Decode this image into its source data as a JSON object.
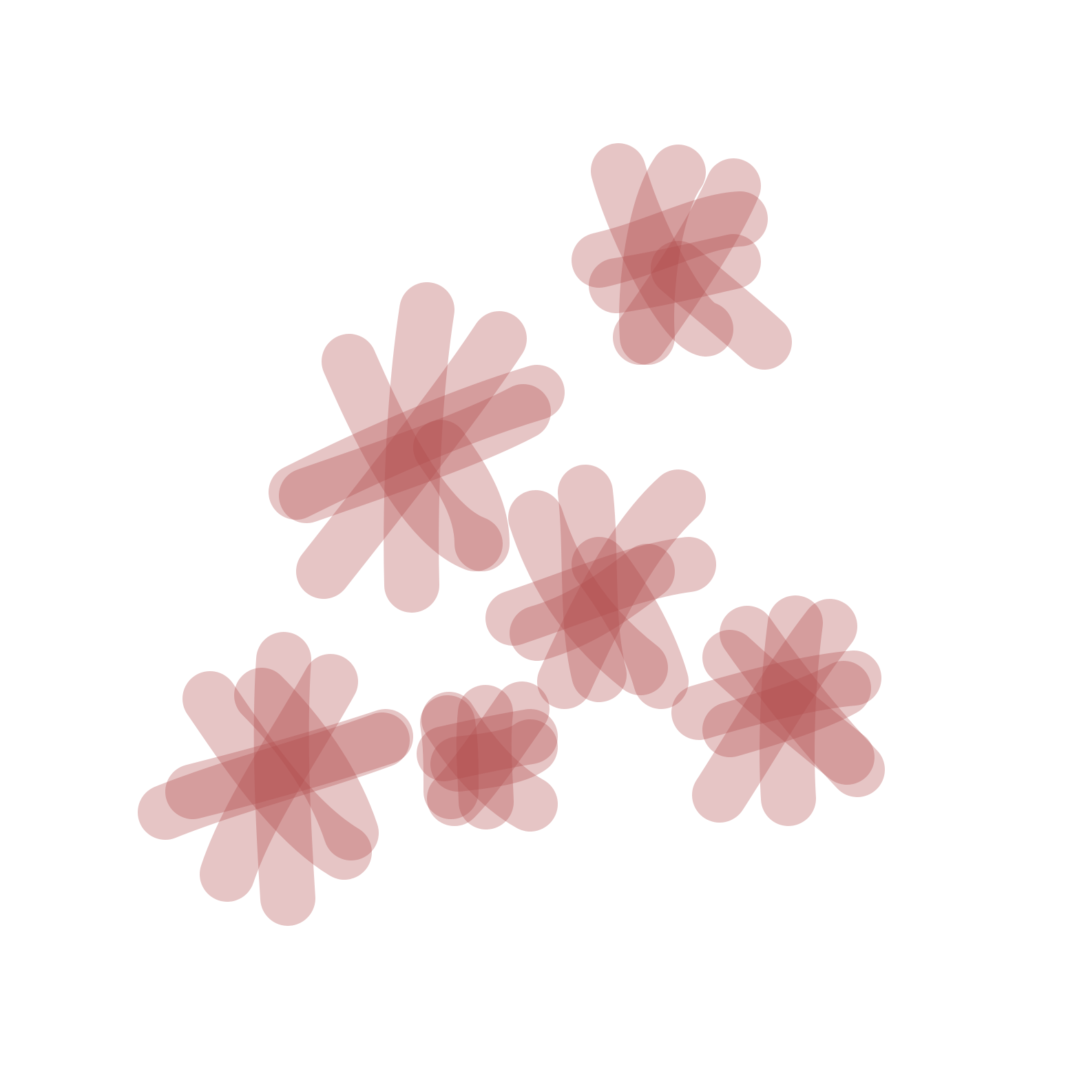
{
  "canvas": {
    "background": "#ffffff"
  },
  "brush": {
    "color": "#b24c4c",
    "opacity": 0.32
  },
  "marks": [
    {
      "name": "asterisk-mark-1"
    },
    {
      "name": "asterisk-mark-2"
    },
    {
      "name": "asterisk-mark-3"
    },
    {
      "name": "asterisk-mark-4"
    },
    {
      "name": "asterisk-mark-5"
    },
    {
      "name": "asterisk-mark-6"
    }
  ]
}
